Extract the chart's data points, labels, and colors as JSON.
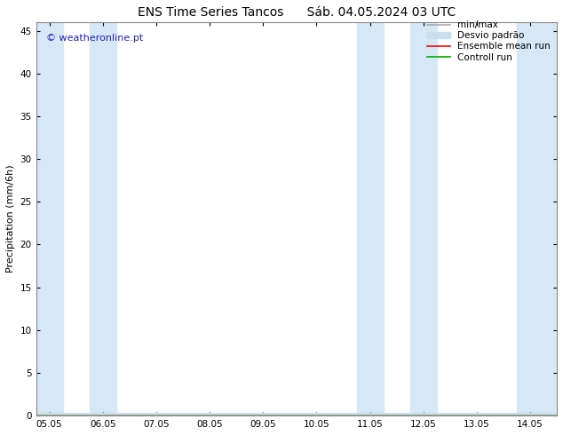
{
  "title_left": "ENS Time Series Tancos",
  "title_right": "Sáb. 04.05.2024 03 UTC",
  "ylabel": "Precipitation (mm/6h)",
  "yticks": [
    0,
    5,
    10,
    15,
    20,
    25,
    30,
    35,
    40,
    45
  ],
  "ylim": [
    0,
    46
  ],
  "xtick_labels": [
    "05.05",
    "06.05",
    "07.05",
    "08.05",
    "09.05",
    "10.05",
    "11.05",
    "12.05",
    "13.05",
    "14.05"
  ],
  "xtick_positions": [
    0,
    24,
    48,
    72,
    96,
    120,
    144,
    168,
    192,
    216
  ],
  "xlim": [
    -6,
    228
  ],
  "shaded_bands": [
    {
      "xmin": -6,
      "xmax": 6,
      "color": "#d6e8f5"
    },
    {
      "xmin": 18,
      "xmax": 30,
      "color": "#d6e8f5"
    },
    {
      "xmin": 138,
      "xmax": 150,
      "color": "#d6e8f5"
    },
    {
      "xmin": 162,
      "xmax": 174,
      "color": "#d6e8f5"
    },
    {
      "xmin": 210,
      "xmax": 228,
      "color": "#d6e8f5"
    }
  ],
  "background_color": "#ffffff",
  "plot_bg_color": "#ffffff",
  "grid_color": "#cccccc",
  "watermark_text": "© weatheronline.pt",
  "watermark_color": "#2222bb",
  "watermark_fontsize": 8,
  "legend_entries": [
    {
      "label": "min/max",
      "color": "#aaaaaa",
      "lw": 1.2,
      "ls": "-"
    },
    {
      "label": "Desvio padrão",
      "color": "#c8dff0",
      "lw": 6,
      "ls": "-"
    },
    {
      "label": "Ensemble mean run",
      "color": "#ff0000",
      "lw": 1.2,
      "ls": "-"
    },
    {
      "label": "Controll run",
      "color": "#00aa00",
      "lw": 1.2,
      "ls": "-"
    }
  ],
  "title_fontsize": 10,
  "ylabel_fontsize": 8,
  "tick_fontsize": 7.5,
  "legend_fontsize": 7.5,
  "border_color": "#888888"
}
